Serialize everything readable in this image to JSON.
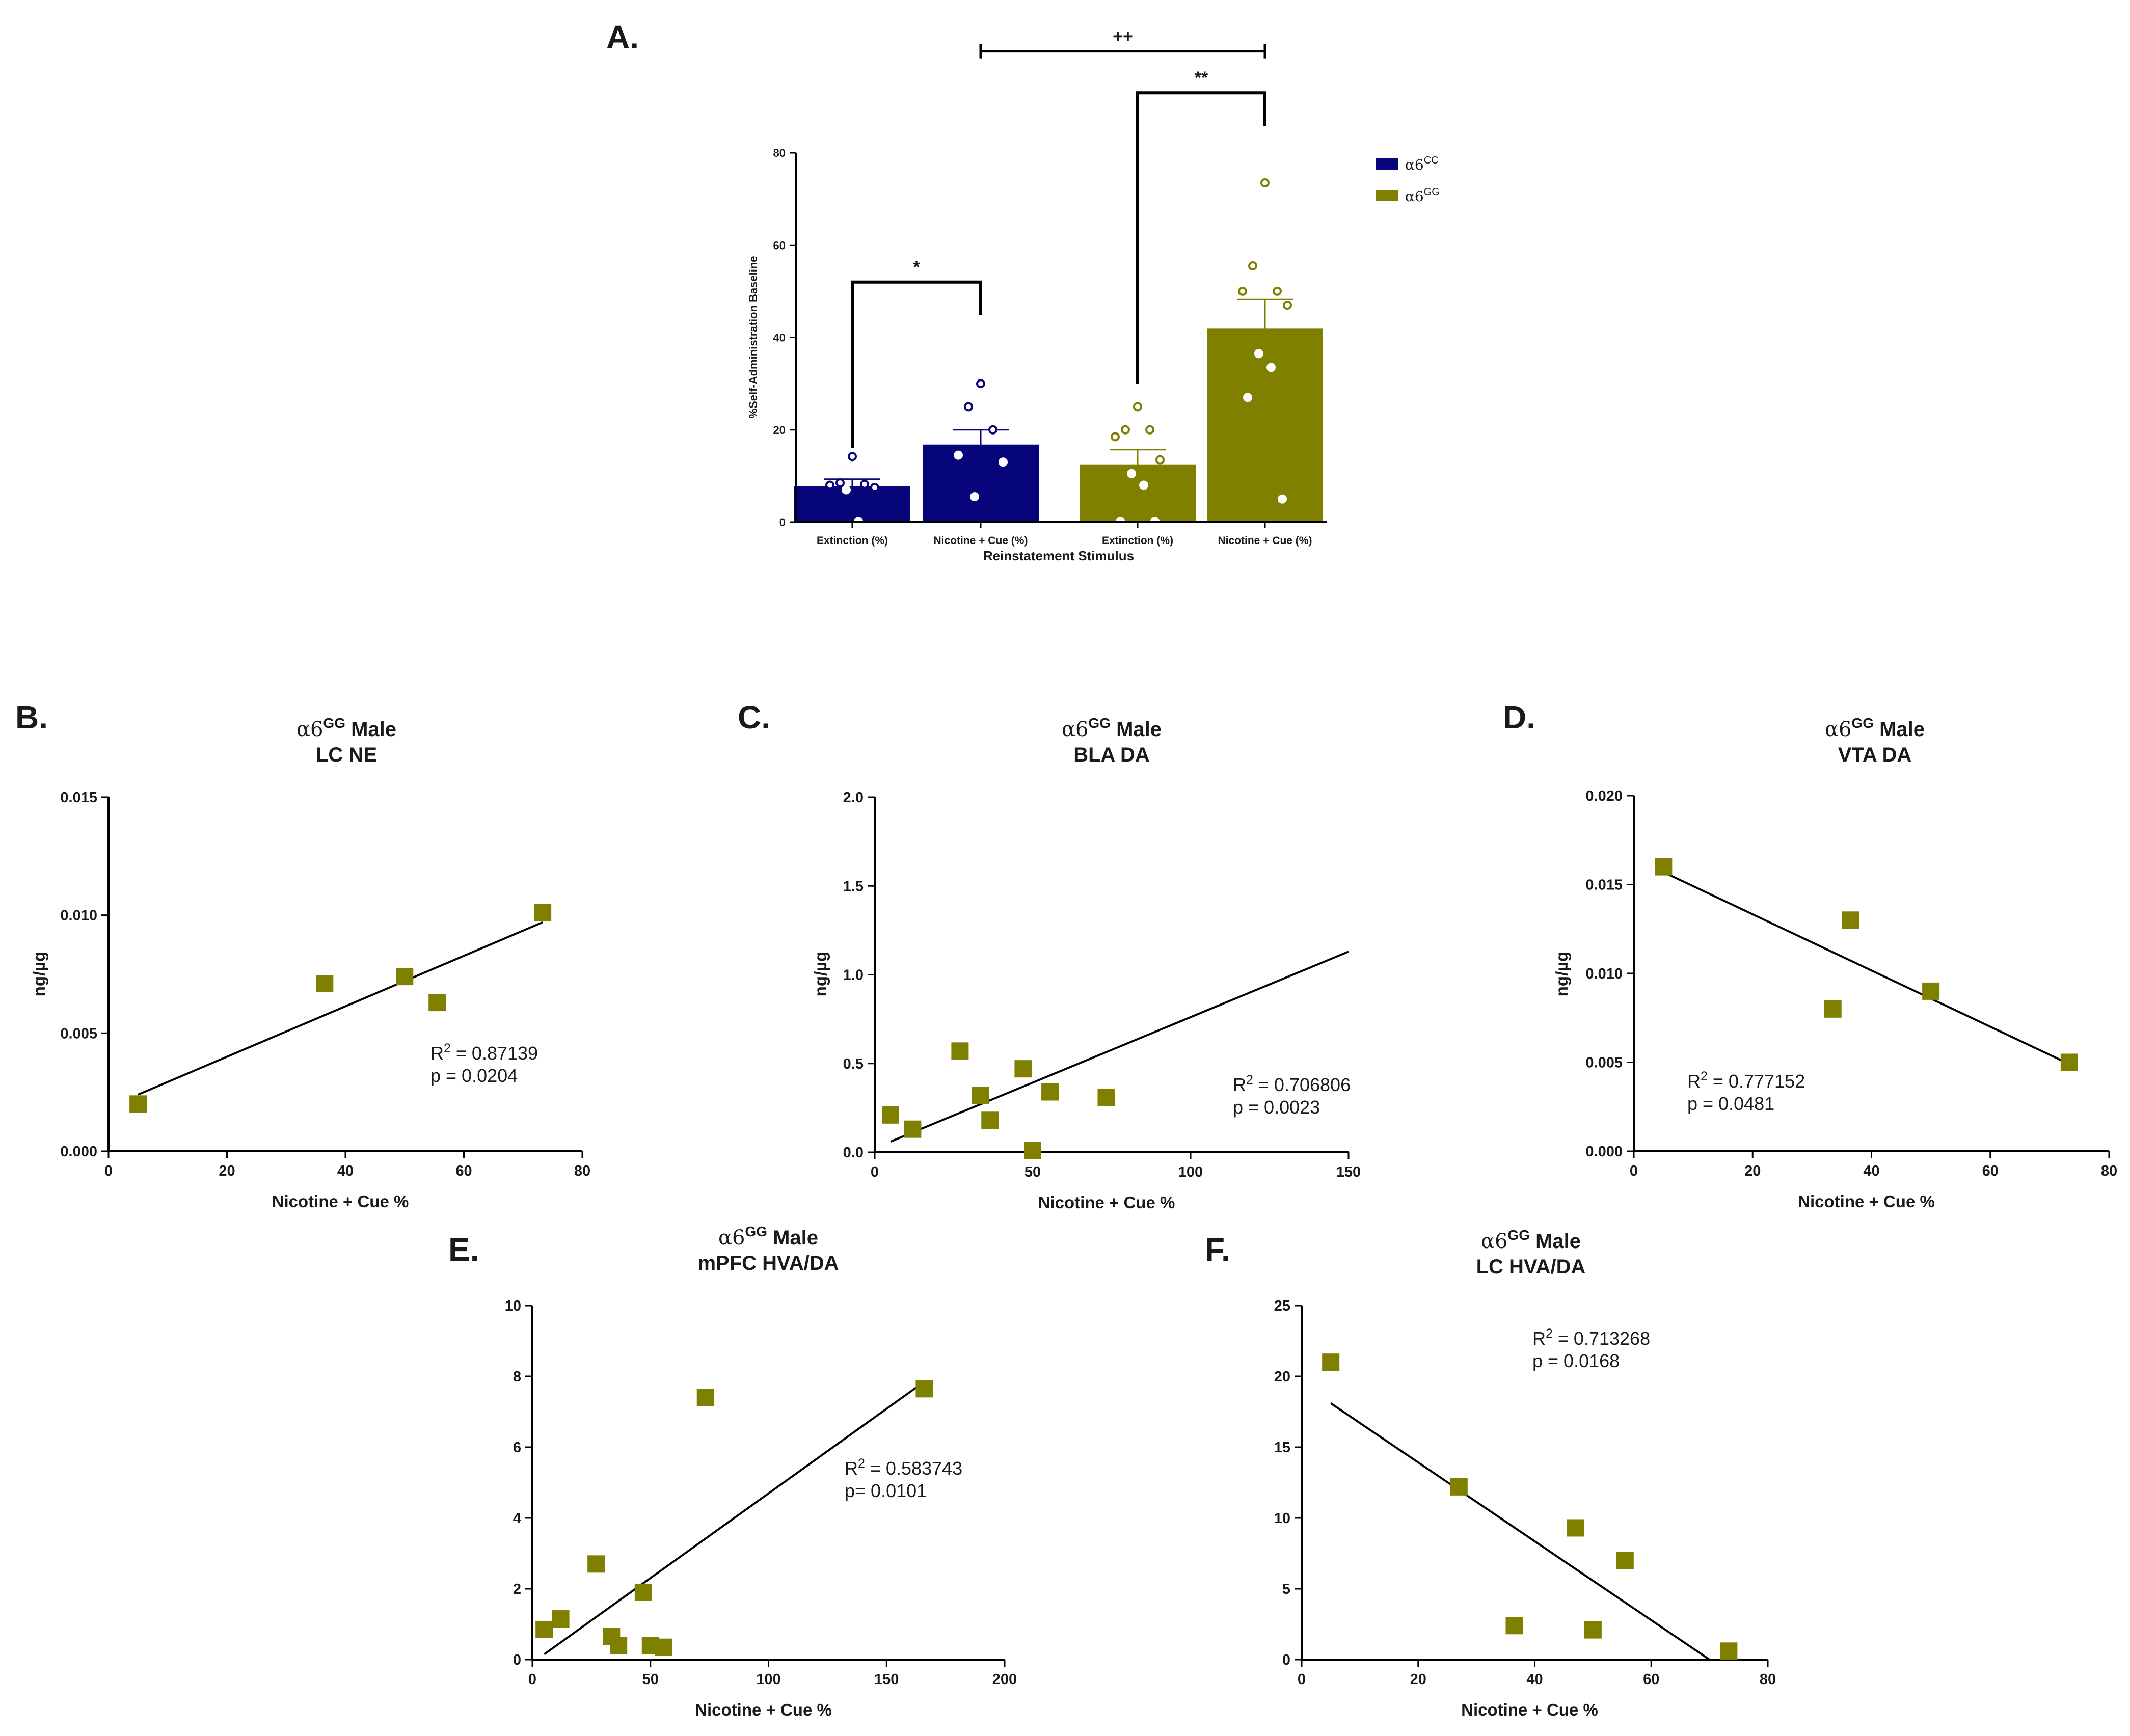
{
  "colors": {
    "cc": "#06067a",
    "gg": "#7f7f00",
    "axis": "#000000"
  },
  "chart_data": [
    {
      "id": "A",
      "type": "bar",
      "panel_label": "A.",
      "ylabel": "%Self-Administration Baseline",
      "xlabel": "Reinstatement Stimulus",
      "ylim": [
        0,
        80
      ],
      "yticks": [
        "0",
        "20",
        "40",
        "60",
        "80"
      ],
      "categories": [
        "Extinction (%)",
        "Nicotine + Cue (%)",
        "Extinction (%)",
        "Nicotine + Cue (%)"
      ],
      "legend": [
        {
          "greek": "α6",
          "sup": "CC",
          "color": "cc"
        },
        {
          "greek": "α6",
          "sup": "GG",
          "color": "gg"
        }
      ],
      "bars": [
        {
          "group": "cc",
          "category": "Extinction (%)",
          "mean": 7.8,
          "sem": 1.5,
          "points": [
            14.2,
            8.5,
            8.2,
            8.0,
            7.5,
            7.0,
            0.2
          ]
        },
        {
          "group": "cc",
          "category": "Nicotine + Cue (%)",
          "mean": 16.8,
          "sem": 3.2,
          "points": [
            30,
            25,
            20,
            14.5,
            13,
            5.5
          ]
        },
        {
          "group": "gg",
          "category": "Extinction (%)",
          "mean": 12.5,
          "sem": 3.2,
          "points": [
            25,
            20,
            20,
            18.5,
            13.5,
            10.5,
            8,
            0.2,
            0.2
          ]
        },
        {
          "group": "gg",
          "category": "Nicotine + Cue (%)",
          "mean": 42,
          "sem": 6.3,
          "points": [
            73.5,
            55.5,
            50,
            50,
            47,
            36.5,
            33.5,
            27,
            5
          ]
        }
      ],
      "significance": [
        {
          "label": "*",
          "from": 0,
          "to": 1,
          "level": 52
        },
        {
          "label": "**",
          "from": 2,
          "to": 3,
          "level": 93
        },
        {
          "label": "++",
          "from": 1,
          "to": 3,
          "level": 102
        }
      ]
    },
    {
      "id": "B",
      "type": "scatter",
      "panel_label": "B.",
      "title_greek": "α6",
      "title_sup": "GG",
      "title_rest": " Male",
      "title_line2": "LC NE",
      "xlabel": "Nicotine + Cue %",
      "ylabel": "ng/µg",
      "xlim": [
        0,
        80
      ],
      "ylim": [
        0,
        0.015
      ],
      "xticks": [
        "0",
        "20",
        "40",
        "60",
        "80"
      ],
      "yticks": [
        "0.000",
        "0.005",
        "0.010",
        "0.015"
      ],
      "x": [
        5,
        36.5,
        50,
        55.5,
        73.3
      ],
      "y": [
        0.002,
        0.0071,
        0.0074,
        0.0063,
        0.0101
      ],
      "fit": {
        "x": [
          5,
          73.3
        ],
        "y": [
          0.0024,
          0.0097
        ]
      },
      "stats": {
        "r2_prefix": "R",
        "r2_sup": "2",
        "r2_value": " = 0.87139",
        "p_text": "p = 0.0204"
      }
    },
    {
      "id": "C",
      "type": "scatter",
      "panel_label": "C.",
      "title_greek": "α6",
      "title_sup": "GG",
      "title_rest": " Male",
      "title_line2": "BLA DA",
      "xlabel": "Nicotine + Cue %",
      "ylabel": "ng/µg",
      "xlim": [
        0,
        150
      ],
      "ylim": [
        0,
        2.0
      ],
      "xticks": [
        "0",
        "50",
        "100",
        "150"
      ],
      "yticks": [
        "0.0",
        "0.5",
        "1.0",
        "1.5",
        "2.0"
      ],
      "x": [
        5,
        12,
        27,
        33.5,
        36.5,
        47,
        50,
        55.5,
        73.3
      ],
      "y": [
        0.21,
        0.13,
        0.57,
        0.32,
        0.18,
        0.47,
        0.01,
        0.34,
        0.31
      ],
      "fit": {
        "x": [
          5,
          150
        ],
        "y": [
          0.06,
          1.13
        ]
      },
      "stats": {
        "r2_prefix": "R",
        "r2_sup": "2",
        "r2_value": " = 0.706806",
        "p_text": "p = 0.0023"
      }
    },
    {
      "id": "D",
      "type": "scatter",
      "panel_label": "D.",
      "title_greek": "α6",
      "title_sup": "GG",
      "title_rest": " Male",
      "title_line2": "VTA DA",
      "xlabel": "Nicotine + Cue %",
      "ylabel": "ng/µg",
      "xlim": [
        0,
        80
      ],
      "ylim": [
        0,
        0.02
      ],
      "xticks": [
        "0",
        "20",
        "40",
        "60",
        "80"
      ],
      "yticks": [
        "0.000",
        "0.005",
        "0.010",
        "0.015",
        "0.020"
      ],
      "x": [
        5,
        33.5,
        36.5,
        50,
        73.3
      ],
      "y": [
        0.016,
        0.008,
        0.013,
        0.009,
        0.005
      ],
      "fit": {
        "x": [
          5,
          73.3
        ],
        "y": [
          0.0157,
          0.0049
        ]
      },
      "stats": {
        "r2_prefix": "R",
        "r2_sup": "2",
        "r2_value": " = 0.777152",
        "p_text": "p = 0.0481"
      }
    },
    {
      "id": "E",
      "type": "scatter",
      "panel_label": "E.",
      "title_greek": "α6",
      "title_sup": "GG",
      "title_rest": " Male",
      "title_line2": "mPFC HVA/DA",
      "xlabel": "Nicotine + Cue %",
      "ylabel": "",
      "xlim": [
        0,
        200
      ],
      "ylim": [
        0,
        10
      ],
      "xticks": [
        "0",
        "50",
        "100",
        "150",
        "200"
      ],
      "yticks": [
        "0",
        "2",
        "4",
        "6",
        "8",
        "10"
      ],
      "x": [
        5,
        12,
        27,
        33.5,
        36.5,
        47,
        50,
        55.5,
        73.3,
        166
      ],
      "y": [
        0.85,
        1.15,
        2.7,
        0.65,
        0.4,
        1.9,
        0.4,
        0.35,
        7.4,
        7.65
      ],
      "fit": {
        "x": [
          5,
          166
        ],
        "y": [
          0.15,
          7.85
        ]
      },
      "stats": {
        "r2_prefix": "R",
        "r2_sup": "2",
        "r2_value": " = 0.583743",
        "p_text": "p= 0.0101"
      }
    },
    {
      "id": "F",
      "type": "scatter",
      "panel_label": "F.",
      "title_greek": "α6",
      "title_sup": "GG",
      "title_rest": " Male",
      "title_line2": "LC HVA/DA",
      "xlabel": "Nicotine + Cue %",
      "ylabel": "",
      "xlim": [
        0,
        80
      ],
      "ylim": [
        0,
        25
      ],
      "xticks": [
        "0",
        "20",
        "40",
        "60",
        "80"
      ],
      "yticks": [
        "0",
        "5",
        "10",
        "15",
        "20",
        "25"
      ],
      "x": [
        5,
        27,
        36.5,
        47,
        50,
        55.5,
        73.3
      ],
      "y": [
        21,
        12.2,
        2.4,
        9.3,
        2.1,
        7.0,
        0.6
      ],
      "fit": {
        "x": [
          5,
          70
        ],
        "y": [
          18.1,
          0
        ]
      },
      "stats": {
        "r2_prefix": "R",
        "r2_sup": "2",
        "r2_value": " = 0.713268",
        "p_text": "p = 0.0168"
      }
    }
  ]
}
